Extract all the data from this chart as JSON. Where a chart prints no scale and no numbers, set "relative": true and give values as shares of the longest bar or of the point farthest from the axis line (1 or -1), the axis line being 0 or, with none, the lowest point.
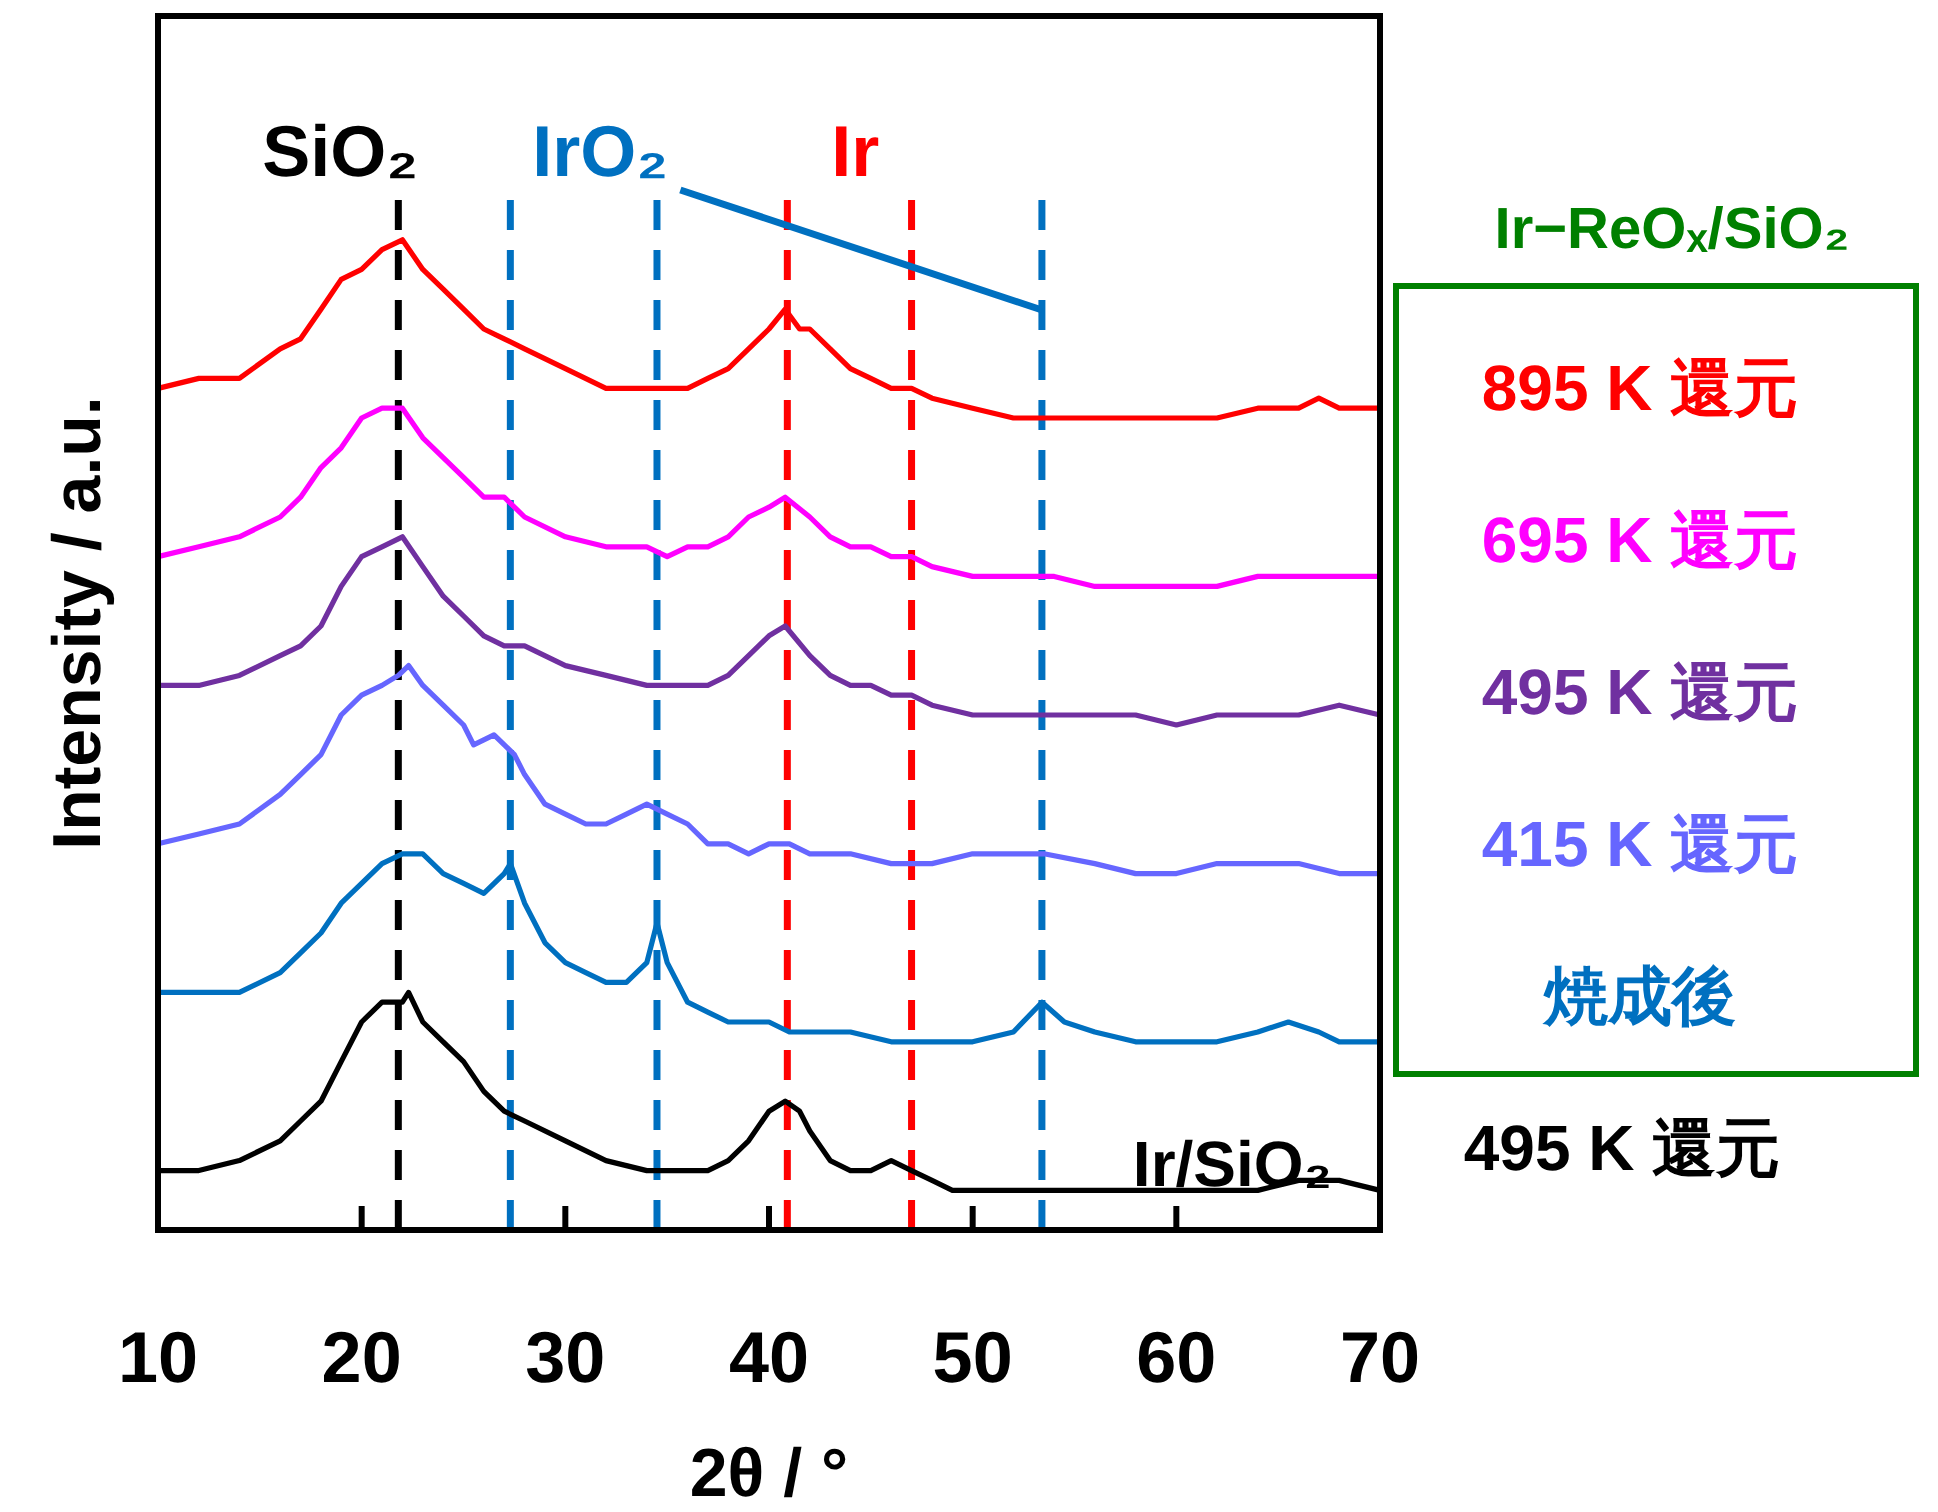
{
  "chart_data": {
    "type": "line",
    "xlabel": "2θ / °",
    "ylabel": "Intensity / a.u.",
    "legend_title": "Ir−ReOₓ/SiO₂",
    "legend": "right",
    "relative": true,
    "xlim": [
      10,
      70
    ],
    "xticks": [
      10,
      20,
      30,
      40,
      50,
      60,
      70
    ],
    "line_style": "solid",
    "series": [
      {
        "name": "895 K 還元",
        "color": "#ff0000",
        "x": [
          10,
          12,
          14,
          16,
          17,
          18,
          19,
          20,
          21,
          22,
          23,
          24,
          25,
          26,
          27,
          28,
          30,
          32,
          34,
          35,
          36,
          37,
          38,
          39,
          40,
          40.8,
          41.5,
          42,
          43,
          44,
          45,
          46,
          47,
          48,
          50,
          52,
          54,
          56,
          58,
          60,
          62,
          64,
          66,
          67,
          68,
          70
        ],
        "values": [
          0.85,
          0.86,
          0.86,
          0.89,
          0.9,
          0.93,
          0.96,
          0.97,
          0.99,
          1.0,
          0.97,
          0.95,
          0.93,
          0.91,
          0.9,
          0.89,
          0.87,
          0.85,
          0.85,
          0.85,
          0.85,
          0.86,
          0.87,
          0.89,
          0.91,
          0.93,
          0.91,
          0.91,
          0.89,
          0.87,
          0.86,
          0.85,
          0.85,
          0.84,
          0.83,
          0.82,
          0.82,
          0.82,
          0.82,
          0.82,
          0.82,
          0.83,
          0.83,
          0.84,
          0.83,
          0.83
        ]
      },
      {
        "name": "695 K 還元",
        "color": "#ff00ff",
        "x": [
          10,
          12,
          14,
          16,
          17,
          18,
          19,
          20,
          21,
          22,
          23,
          24,
          25,
          26,
          27,
          28,
          30,
          32,
          34,
          35,
          36,
          37,
          38,
          39,
          40,
          40.8,
          42,
          43,
          44,
          45,
          46,
          47,
          48,
          50,
          52,
          54,
          56,
          58,
          60,
          62,
          64,
          66,
          68,
          70
        ],
        "values": [
          0.68,
          0.69,
          0.7,
          0.72,
          0.74,
          0.77,
          0.79,
          0.82,
          0.83,
          0.83,
          0.8,
          0.78,
          0.76,
          0.74,
          0.74,
          0.72,
          0.7,
          0.69,
          0.69,
          0.68,
          0.69,
          0.69,
          0.7,
          0.72,
          0.73,
          0.74,
          0.72,
          0.7,
          0.69,
          0.69,
          0.68,
          0.68,
          0.67,
          0.66,
          0.66,
          0.66,
          0.65,
          0.65,
          0.65,
          0.65,
          0.66,
          0.66,
          0.66,
          0.66
        ]
      },
      {
        "name": "495 K 還元",
        "color": "#7030a0",
        "x": [
          10,
          12,
          14,
          16,
          17,
          18,
          19,
          20,
          21,
          22,
          23,
          24,
          25,
          26,
          27,
          28,
          30,
          32,
          34,
          35,
          36,
          37,
          38,
          39,
          40,
          40.8,
          42,
          43,
          44,
          45,
          46,
          47,
          48,
          50,
          52,
          54,
          56,
          58,
          60,
          62,
          64,
          66,
          68,
          70
        ],
        "values": [
          0.55,
          0.55,
          0.56,
          0.58,
          0.59,
          0.61,
          0.65,
          0.68,
          0.69,
          0.7,
          0.67,
          0.64,
          0.62,
          0.6,
          0.59,
          0.59,
          0.57,
          0.56,
          0.55,
          0.55,
          0.55,
          0.55,
          0.56,
          0.58,
          0.6,
          0.61,
          0.58,
          0.56,
          0.55,
          0.55,
          0.54,
          0.54,
          0.53,
          0.52,
          0.52,
          0.52,
          0.52,
          0.52,
          0.51,
          0.52,
          0.52,
          0.52,
          0.53,
          0.52
        ]
      },
      {
        "name": "415 K 還元",
        "color": "#6666ff",
        "x": [
          10,
          12,
          14,
          16,
          17,
          18,
          19,
          20,
          21,
          21.8,
          22.3,
          23,
          24,
          25,
          25.5,
          26.5,
          27.5,
          28,
          29,
          30,
          31,
          32,
          33,
          34,
          35,
          36,
          37,
          38,
          39,
          40,
          41,
          42,
          44,
          46,
          48,
          50,
          52,
          53.5,
          56,
          58,
          60,
          62,
          64,
          66,
          68,
          70
        ],
        "values": [
          0.39,
          0.4,
          0.41,
          0.44,
          0.46,
          0.48,
          0.52,
          0.54,
          0.55,
          0.56,
          0.57,
          0.55,
          0.53,
          0.51,
          0.49,
          0.5,
          0.48,
          0.46,
          0.43,
          0.42,
          0.41,
          0.41,
          0.42,
          0.43,
          0.42,
          0.41,
          0.39,
          0.39,
          0.38,
          0.39,
          0.39,
          0.38,
          0.38,
          0.37,
          0.37,
          0.38,
          0.38,
          0.38,
          0.37,
          0.36,
          0.36,
          0.37,
          0.37,
          0.37,
          0.36,
          0.36
        ]
      },
      {
        "name": "焼成後",
        "color": "#0070c0",
        "x": [
          10,
          12,
          14,
          16,
          17,
          18,
          19,
          20,
          21,
          22,
          23,
          24,
          25,
          26,
          27,
          27.3,
          28,
          29,
          30,
          31,
          32,
          33,
          34,
          34.5,
          35,
          36,
          37,
          38,
          39,
          40,
          41,
          42,
          44,
          46,
          48,
          50,
          52,
          53.4,
          54.5,
          56,
          58,
          60,
          62,
          64,
          65.5,
          67,
          68,
          70
        ],
        "values": [
          0.24,
          0.24,
          0.24,
          0.26,
          0.28,
          0.3,
          0.33,
          0.35,
          0.37,
          0.38,
          0.38,
          0.36,
          0.35,
          0.34,
          0.36,
          0.37,
          0.33,
          0.29,
          0.27,
          0.26,
          0.25,
          0.25,
          0.27,
          0.31,
          0.27,
          0.23,
          0.22,
          0.21,
          0.21,
          0.21,
          0.2,
          0.2,
          0.2,
          0.19,
          0.19,
          0.19,
          0.2,
          0.23,
          0.21,
          0.2,
          0.19,
          0.19,
          0.19,
          0.2,
          0.21,
          0.2,
          0.19,
          0.19
        ]
      },
      {
        "name": "495 K 還元",
        "color": "#000000",
        "x": [
          10,
          12,
          14,
          16,
          17,
          18,
          19,
          20,
          21,
          22,
          22.3,
          23,
          24,
          25,
          26,
          27,
          28,
          30,
          32,
          34,
          36,
          37,
          38,
          39,
          40,
          40.8,
          41.5,
          42,
          43,
          44,
          45,
          46,
          47,
          48,
          49,
          50,
          52,
          54,
          56,
          58,
          60,
          62,
          64,
          66,
          67,
          68,
          70
        ],
        "values": [
          0.06,
          0.06,
          0.07,
          0.09,
          0.11,
          0.13,
          0.17,
          0.21,
          0.23,
          0.23,
          0.24,
          0.21,
          0.19,
          0.17,
          0.14,
          0.12,
          0.11,
          0.09,
          0.07,
          0.06,
          0.06,
          0.06,
          0.07,
          0.09,
          0.12,
          0.13,
          0.12,
          0.1,
          0.07,
          0.06,
          0.06,
          0.07,
          0.06,
          0.05,
          0.04,
          0.04,
          0.04,
          0.04,
          0.04,
          0.04,
          0.04,
          0.04,
          0.04,
          0.05,
          0.05,
          0.05,
          0.04
        ]
      }
    ],
    "ref_lines": [
      {
        "axis": "x",
        "value": 21.8,
        "label": "SiO₂",
        "color": "#000000",
        "line_style": "dashed"
      },
      {
        "axis": "x",
        "value": 27.3,
        "label": "IrO₂",
        "color": "#0070c0",
        "line_style": "dashed"
      },
      {
        "axis": "x",
        "value": 34.5,
        "color": "#0070c0",
        "line_style": "dashed"
      },
      {
        "axis": "x",
        "value": 40.9,
        "label": "Ir",
        "color": "#ff0000",
        "line_style": "dashed"
      },
      {
        "axis": "x",
        "value": 47.0,
        "color": "#ff0000",
        "line_style": "dashed"
      },
      {
        "axis": "x",
        "value": 53.4,
        "color": "#0070c0",
        "line_style": "dashed"
      }
    ],
    "annotations": [
      "Ir/SiO₂"
    ]
  }
}
